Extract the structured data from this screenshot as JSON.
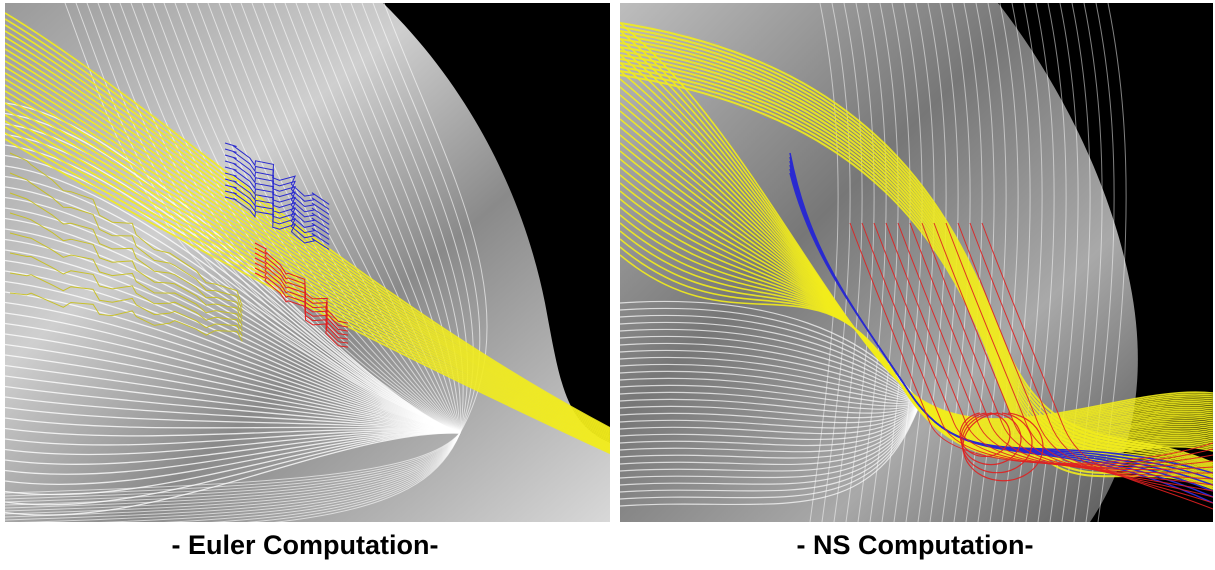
{
  "captions": {
    "left": "- Euler Computation-",
    "right": "- NS Computation-"
  }
}
